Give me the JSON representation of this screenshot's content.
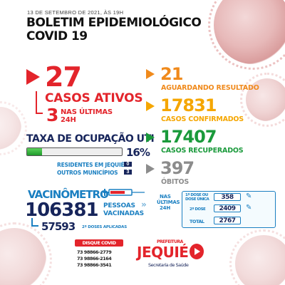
{
  "header": {
    "date": "13 DE SETEMBRO DE 2021, ÀS 19H",
    "title_line1": "BOLETIM EPIDEMIOLÓGICO",
    "title_line2": "COVID 19"
  },
  "active": {
    "value": "27",
    "label": "CASOS ATIVOS",
    "recent_value": "3",
    "recent_label_1": "NAS ÚLTIMAS",
    "recent_label_2": "24H"
  },
  "uti": {
    "title": "TAXA DE OCUPAÇÃO UTI",
    "percent": "16%",
    "fill_fraction": 0.16,
    "residents_label": "RESIDENTES EM JEQUIÉ",
    "residents_value": "0",
    "others_label": "OUTROS MUNICÍPIOS",
    "others_value": "3"
  },
  "stats": {
    "waiting_value": "21",
    "waiting_label": "AGUARDANDO RESULTADO",
    "confirmed_value": "17831",
    "confirmed_label": "CASOS CONFIRMADOS",
    "recovered_value": "17407",
    "recovered_label": "CASOS RECUPERADOS",
    "deaths_value": "397",
    "deaths_label": "ÓBITOS"
  },
  "vaccine": {
    "title": "VACINÔMETRO",
    "total_value": "106381",
    "total_label_1": "PESSOAS",
    "total_label_2": "VACINADAS",
    "second_value": "57593",
    "second_label": "2ª DOSES APLICADAS",
    "last24_label_1": "NAS",
    "last24_label_2": "ÚLTIMAS",
    "last24_label_3": "24H",
    "row1_label_1": "1ª DOSE OU",
    "row1_label_2": "DOSE ÚNICA",
    "row1_value": "358",
    "row2_label": "2ª DOSE",
    "row2_value": "2409",
    "total_row_label": "TOTAL",
    "total_row_value": "2767"
  },
  "footer": {
    "disque_label": "DISQUE COVID",
    "phones": [
      "73 98866-2779",
      "73 98866-2164",
      "73 98866-3541"
    ],
    "prefeitura_label": "PREFEITURA",
    "city_name": "JEQUIÉ",
    "secretaria_label": "Secretaria de Saúde"
  },
  "colors": {
    "red": "#e3242b",
    "orange": "#f08a1c",
    "yellow": "#f5a600",
    "green": "#1a9a3b",
    "gray": "#8c8c8c",
    "blue": "#1a7fc1",
    "navy": "#17255b"
  }
}
